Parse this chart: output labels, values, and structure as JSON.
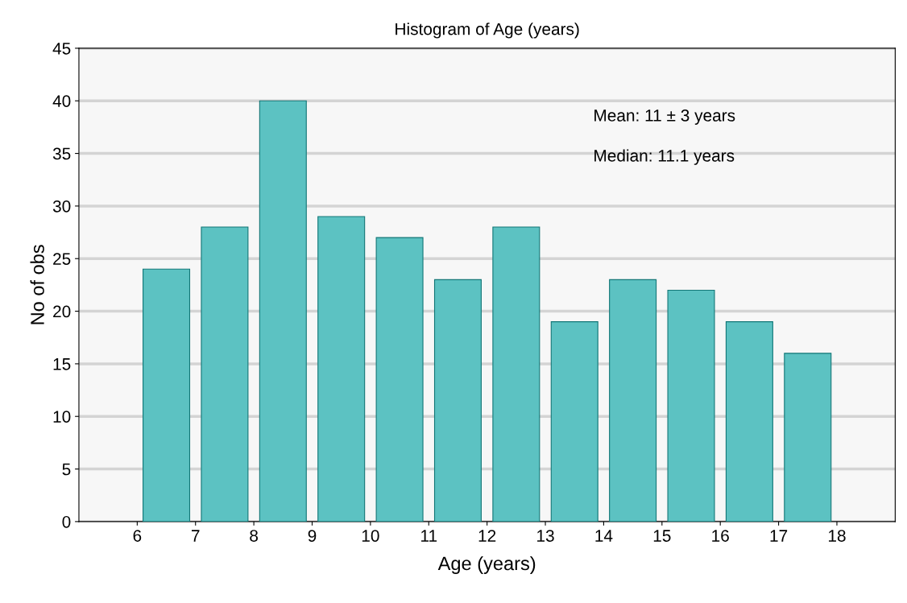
{
  "chart_data": {
    "type": "histogram",
    "title": "Histogram of Age (years)",
    "xlabel": "Age (years)",
    "ylabel": "No of obs",
    "bins": [
      6,
      7,
      8,
      9,
      10,
      11,
      12,
      13,
      14,
      15,
      16,
      17,
      18
    ],
    "values": [
      24,
      28,
      40,
      29,
      27,
      23,
      28,
      19,
      23,
      22,
      19,
      16
    ],
    "color": "#5cc2c2",
    "xlim": [
      5,
      19
    ],
    "xticks": [
      6,
      7,
      8,
      9,
      10,
      11,
      12,
      13,
      14,
      15,
      16,
      17,
      18
    ],
    "ylim": [
      0,
      45
    ],
    "yticks": [
      0,
      5,
      10,
      15,
      20,
      25,
      30,
      35,
      40,
      45
    ],
    "grid": "y",
    "annotations": [
      "Mean: 11 ± 3 years",
      "Median: 11.1 years"
    ]
  }
}
